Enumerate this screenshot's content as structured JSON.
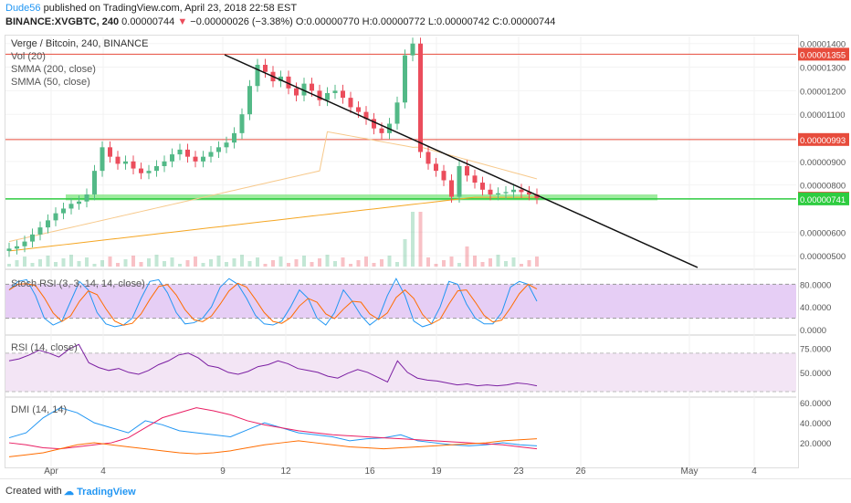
{
  "header": {
    "user": "Dude56",
    "published": "published on TradingView.com, April 23, 2018 22:58 EST",
    "symbol": "BINANCE:XVGBTC, 240",
    "price": "0.00000744",
    "change": "−0.00000026 (−3.38%)",
    "ohlc": "O:0.00000770 H:0.00000772 L:0.00000742 C:0.00000744"
  },
  "legend": {
    "title": "Verge / Bitcoin, 240, BINANCE",
    "vol": "Vol (20)",
    "smma200": "SMMA (200, close)",
    "smma50": "SMMA (50, close)",
    "stoch": "Stoch RSI (3, 3, 14, 14, close)",
    "rsi": "RSI (14, close)",
    "dmi": "DMI (14, 14)"
  },
  "colors": {
    "up": "#53b987",
    "down": "#eb4d5c",
    "smma200": "#f5a623",
    "smma50": "#f7c98b",
    "resistance": "#e74c3c",
    "support": "#2ecc40",
    "stoch_k": "#2196f3",
    "stoch_d": "#ff6d00",
    "rsi": "#7b1fa2",
    "dmi_plus": "#2196f3",
    "dmi_minus": "#e91e63",
    "adx": "#ff6d00"
  },
  "footer": {
    "created": "Created with",
    "brand": "TradingView"
  },
  "chart_data": {
    "type": "candlestick",
    "price_ticks": [
      "0.00001400",
      "0.00001300",
      "0.00001200",
      "0.00001100",
      "0.00001000",
      "0.00000900",
      "0.00000800",
      "0.00000600",
      "0.00000500"
    ],
    "price_labels": [
      {
        "text": "0.00001355",
        "value": 1.355e-05,
        "color": "#e74c3c"
      },
      {
        "text": "0.00000993",
        "value": 9.93e-06,
        "color": "#e74c3c"
      },
      {
        "text": "0.00000744",
        "value": 7.44e-06,
        "color": "#e74c3c"
      },
      {
        "text": "0.00000741",
        "value": 7.41e-06,
        "color": "#2ecc40"
      }
    ],
    "x_ticks": [
      "Apr",
      "4",
      "9",
      "12",
      "16",
      "19",
      "23",
      "26",
      "May",
      "4"
    ],
    "stoch_ticks": [
      "80.0000",
      "40.0000",
      "0.0000"
    ],
    "rsi_ticks": [
      "75.0000",
      "50.0000"
    ],
    "dmi_ticks": [
      "60.0000",
      "40.0000",
      "20.0000"
    ],
    "ylim": [
      4.5e-06,
      1.43e-05
    ],
    "horizontal_lines": [
      1.355e-05,
      9.93e-06,
      7.41e-06
    ],
    "close_series": [
      5.3,
      5.4,
      5.6,
      5.9,
      6.2,
      6.5,
      6.8,
      7.0,
      7.2,
      7.3,
      7.6,
      8.6,
      9.6,
      9.2,
      8.9,
      9.0,
      8.7,
      8.5,
      8.6,
      8.8,
      9.0,
      9.3,
      9.5,
      9.2,
      9.0,
      9.2,
      9.4,
      9.6,
      9.8,
      10.2,
      11.0,
      12.2,
      13.1,
      12.8,
      12.4,
      12.6,
      12.1,
      11.8,
      12.3,
      12.0,
      11.6,
      11.9,
      12.0,
      11.7,
      11.3,
      11.1,
      10.8,
      10.4,
      10.2,
      10.6,
      11.5,
      13.5,
      14.0,
      9.4,
      8.9,
      8.6,
      8.2,
      7.5,
      8.8,
      8.4,
      8.1,
      7.8,
      7.6,
      7.65,
      7.7,
      7.8,
      7.7,
      7.6,
      7.44
    ],
    "stoch_k": [
      70,
      85,
      88,
      60,
      20,
      8,
      15,
      50,
      85,
      70,
      30,
      10,
      5,
      8,
      20,
      55,
      85,
      88,
      65,
      30,
      10,
      12,
      20,
      40,
      75,
      90,
      80,
      55,
      25,
      10,
      8,
      15,
      40,
      70,
      55,
      20,
      8,
      30,
      70,
      50,
      25,
      8,
      20,
      60,
      90,
      60,
      15,
      5,
      10,
      40,
      85,
      80,
      45,
      20,
      10,
      10,
      30,
      75,
      85,
      80,
      50
    ],
    "rsi": [
      62,
      64,
      68,
      73,
      70,
      66,
      74,
      79,
      60,
      55,
      52,
      54,
      50,
      48,
      52,
      58,
      62,
      68,
      70,
      65,
      57,
      55,
      50,
      48,
      51,
      56,
      58,
      62,
      59,
      54,
      52,
      50,
      46,
      44,
      49,
      53,
      50,
      45,
      40,
      62,
      50,
      44,
      42,
      41,
      39,
      37,
      38,
      36,
      37,
      36,
      37,
      39,
      38,
      36
    ],
    "dmi_plus": [
      25,
      30,
      45,
      55,
      50,
      40,
      35,
      30,
      42,
      38,
      32,
      30,
      28,
      26,
      33,
      40,
      35,
      30,
      28,
      26,
      22,
      24,
      25,
      28,
      22,
      20,
      18,
      17,
      18,
      20,
      18,
      17
    ],
    "dmi_minus": [
      20,
      18,
      15,
      14,
      16,
      18,
      20,
      25,
      35,
      45,
      50,
      55,
      52,
      48,
      42,
      38,
      35,
      32,
      30,
      28,
      27,
      26,
      25,
      24,
      23,
      22,
      21,
      20,
      19,
      18,
      16,
      14
    ],
    "adx": [
      6,
      8,
      10,
      14,
      18,
      20,
      18,
      16,
      14,
      12,
      10,
      9,
      10,
      12,
      15,
      18,
      20,
      22,
      20,
      18,
      16,
      15,
      14,
      15,
      16,
      17,
      18,
      19,
      20,
      22,
      23,
      24
    ]
  }
}
